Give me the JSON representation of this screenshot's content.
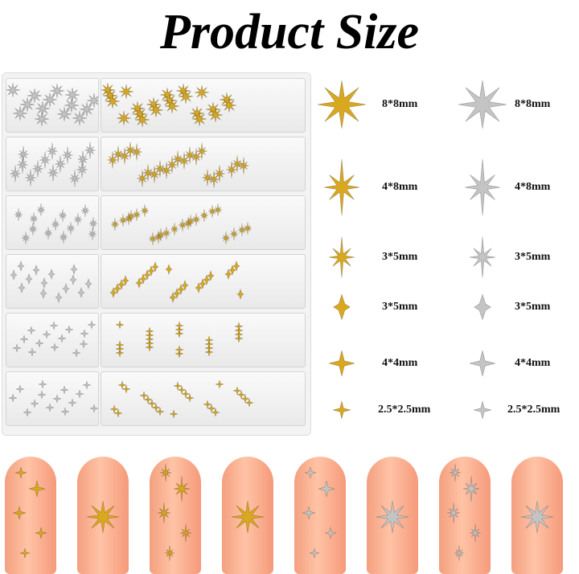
{
  "title": "Product Size",
  "colors": {
    "gold": "#d9a81e",
    "silver": "#c4c4c4",
    "nail": "#ffb496"
  },
  "sizes": [
    {
      "shape": "8-point-star-textured",
      "gold_label": "8*8mm",
      "silver_label": "8*8mm"
    },
    {
      "shape": "8-point-star-long",
      "gold_label": "4*8mm",
      "silver_label": "4*8mm"
    },
    {
      "shape": "8-point-star-small",
      "gold_label": "3*5mm",
      "silver_label": "3*5mm"
    },
    {
      "shape": "diamond-star",
      "gold_label": "3*5mm",
      "silver_label": "3*5mm"
    },
    {
      "shape": "4-point-star",
      "gold_label": "4*4mm",
      "silver_label": "4*4mm"
    },
    {
      "shape": "4-point-star-small",
      "gold_label": "2.5*2.5mm",
      "silver_label": "2.5*2.5mm"
    }
  ],
  "nail_samples": [
    "gold",
    "gold",
    "gold",
    "gold",
    "silver",
    "silver",
    "silver",
    "silver"
  ]
}
